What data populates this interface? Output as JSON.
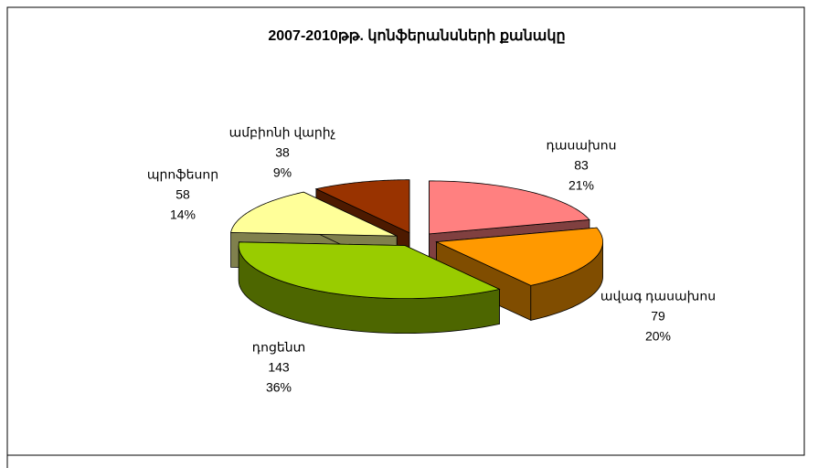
{
  "chart_data": {
    "type": "pie3d",
    "title": "2007-2010թթ. կոնֆերանսների քանակը",
    "categories": [
      "դասախոս",
      "ավագ դասախոս",
      "դոցենտ",
      "պրոֆեսոր",
      "ամբիոնի վարիչ"
    ],
    "values": [
      83,
      79,
      143,
      58,
      38
    ],
    "percent_labels": [
      "21%",
      "20%",
      "36%",
      "14%",
      "9%"
    ],
    "colors": [
      "#ff8080",
      "#ff9900",
      "#99cc00",
      "#ffff99",
      "#993300"
    ]
  }
}
